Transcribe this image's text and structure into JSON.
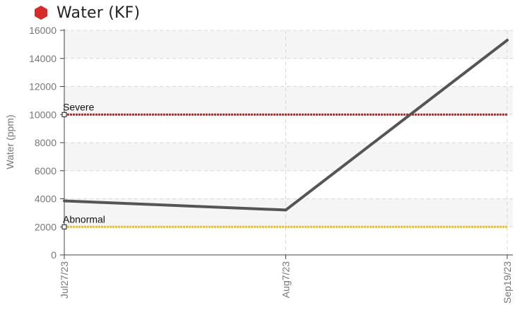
{
  "header": {
    "title": "Water (KF)",
    "status_icon": "hexagon-icon",
    "status_color": "#d72b2b"
  },
  "chart_data": {
    "type": "line",
    "title": "Water (KF)",
    "xlabel": "",
    "ylabel": "Water (ppm)",
    "x": [
      "Jul27/23",
      "Aug7/23",
      "Sep19/23"
    ],
    "series": [
      {
        "values": [
          3850,
          3200,
          15300
        ],
        "color": "#555555"
      }
    ],
    "thresholds": [
      {
        "name": "Severe",
        "value": 10000,
        "color": "#ee1111"
      },
      {
        "name": "Abnormal",
        "value": 2000,
        "color": "#f2c500"
      }
    ],
    "ylim": [
      0,
      16000
    ],
    "yticks": [
      0,
      2000,
      4000,
      6000,
      8000,
      10000,
      12000,
      14000,
      16000
    ],
    "grid": true,
    "legend": "none"
  }
}
